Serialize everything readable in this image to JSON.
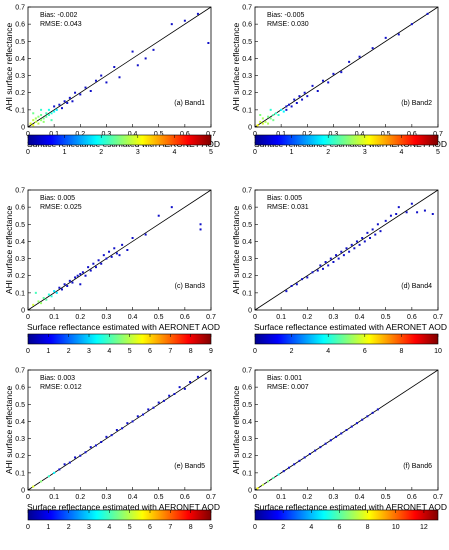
{
  "chart_data": [
    {
      "type": "scatter",
      "id": "a",
      "panel_label": "(a) Band1",
      "xlabel": "Surface reflectance estimated with AERONET AOD",
      "ylabel": "AHI surface reflectance",
      "xlim": [
        0,
        0.7
      ],
      "ylim": [
        0,
        0.7
      ],
      "xticks": [
        "0",
        "0.1",
        "0.2",
        "0.3",
        "0.4",
        "0.5",
        "0.6",
        "0.7"
      ],
      "yticks": [
        "0",
        "0.1",
        "0.2",
        "0.3",
        "0.4",
        "0.5",
        "0.6",
        "0.7"
      ],
      "stats": [
        "Bias: -0.002",
        "RMSE: 0.043"
      ],
      "colorbar": {
        "ticks": [
          "0",
          "1",
          "2",
          "3",
          "4",
          "5"
        ],
        "max": 5
      },
      "reference_line": "1:1",
      "points": [
        [
          0.01,
          0.02
        ],
        [
          0.02,
          0.01
        ],
        [
          0.02,
          0.04
        ],
        [
          0.03,
          0.03
        ],
        [
          0.03,
          0.05
        ],
        [
          0.04,
          0.02
        ],
        [
          0.04,
          0.06
        ],
        [
          0.05,
          0.04
        ],
        [
          0.05,
          0.07
        ],
        [
          0.06,
          0.05
        ],
        [
          0.06,
          0.03
        ],
        [
          0.07,
          0.08
        ],
        [
          0.07,
          0.06
        ],
        [
          0.08,
          0.07
        ],
        [
          0.08,
          0.1
        ],
        [
          0.09,
          0.08
        ],
        [
          0.1,
          0.09
        ],
        [
          0.1,
          0.12
        ],
        [
          0.11,
          0.1
        ],
        [
          0.12,
          0.13
        ],
        [
          0.13,
          0.11
        ],
        [
          0.14,
          0.15
        ],
        [
          0.15,
          0.14
        ],
        [
          0.16,
          0.17
        ],
        [
          0.17,
          0.15
        ],
        [
          0.18,
          0.2
        ],
        [
          0.2,
          0.19
        ],
        [
          0.22,
          0.23
        ],
        [
          0.24,
          0.21
        ],
        [
          0.26,
          0.27
        ],
        [
          0.28,
          0.3
        ],
        [
          0.3,
          0.26
        ],
        [
          0.33,
          0.35
        ],
        [
          0.35,
          0.29
        ],
        [
          0.4,
          0.44
        ],
        [
          0.42,
          0.36
        ],
        [
          0.45,
          0.4
        ],
        [
          0.48,
          0.45
        ],
        [
          0.55,
          0.6
        ],
        [
          0.6,
          0.62
        ],
        [
          0.65,
          0.66
        ],
        [
          0.69,
          0.49
        ],
        [
          0.02,
          0.08
        ],
        [
          0.05,
          0.1
        ],
        [
          0.09,
          0.04
        ]
      ]
    },
    {
      "type": "scatter",
      "id": "b",
      "panel_label": "(b) Band2",
      "xlabel": "Surface reflectance estimated with AERONET AOD",
      "ylabel": "AHI surface reflectance",
      "xlim": [
        0,
        0.7
      ],
      "ylim": [
        0,
        0.7
      ],
      "xticks": [
        "0",
        "0.1",
        "0.2",
        "0.3",
        "0.4",
        "0.5",
        "0.6",
        "0.7"
      ],
      "yticks": [
        "0",
        "0.1",
        "0.2",
        "0.3",
        "0.4",
        "0.5",
        "0.6",
        "0.7"
      ],
      "stats": [
        "Bias: -0.005",
        "RMSE: 0.030"
      ],
      "colorbar": {
        "ticks": [
          "0",
          "1",
          "2",
          "3",
          "4",
          "5"
        ],
        "max": 5
      },
      "reference_line": "1:1",
      "points": [
        [
          0.01,
          0.01
        ],
        [
          0.02,
          0.03
        ],
        [
          0.03,
          0.02
        ],
        [
          0.03,
          0.05
        ],
        [
          0.04,
          0.03
        ],
        [
          0.05,
          0.06
        ],
        [
          0.05,
          0.02
        ],
        [
          0.06,
          0.05
        ],
        [
          0.07,
          0.07
        ],
        [
          0.07,
          0.04
        ],
        [
          0.08,
          0.08
        ],
        [
          0.09,
          0.07
        ],
        [
          0.1,
          0.1
        ],
        [
          0.11,
          0.09
        ],
        [
          0.12,
          0.12
        ],
        [
          0.12,
          0.1
        ],
        [
          0.13,
          0.13
        ],
        [
          0.14,
          0.12
        ],
        [
          0.15,
          0.16
        ],
        [
          0.16,
          0.14
        ],
        [
          0.17,
          0.18
        ],
        [
          0.18,
          0.16
        ],
        [
          0.19,
          0.2
        ],
        [
          0.2,
          0.18
        ],
        [
          0.22,
          0.24
        ],
        [
          0.24,
          0.21
        ],
        [
          0.26,
          0.27
        ],
        [
          0.28,
          0.26
        ],
        [
          0.3,
          0.31
        ],
        [
          0.33,
          0.32
        ],
        [
          0.36,
          0.38
        ],
        [
          0.4,
          0.41
        ],
        [
          0.45,
          0.46
        ],
        [
          0.5,
          0.52
        ],
        [
          0.55,
          0.54
        ],
        [
          0.6,
          0.6
        ],
        [
          0.66,
          0.66
        ],
        [
          0.02,
          0.07
        ],
        [
          0.06,
          0.1
        ]
      ]
    },
    {
      "type": "scatter",
      "id": "c",
      "panel_label": "(c) Band3",
      "xlabel": "Surface reflectance estimated with AERONET AOD",
      "ylabel": "AHI surface reflectance",
      "xlim": [
        0,
        0.7
      ],
      "ylim": [
        0,
        0.7
      ],
      "xticks": [
        "0",
        "0.1",
        "0.2",
        "0.3",
        "0.4",
        "0.5",
        "0.6",
        "0.7"
      ],
      "yticks": [
        "0",
        "0.1",
        "0.2",
        "0.3",
        "0.4",
        "0.5",
        "0.6",
        "0.7"
      ],
      "stats": [
        "Bias: 0.005",
        "RMSE: 0.025"
      ],
      "colorbar": {
        "ticks": [
          "0",
          "1",
          "2",
          "3",
          "4",
          "5",
          "6",
          "7",
          "8",
          "9"
        ],
        "max": 9
      },
      "reference_line": "1:1",
      "points": [
        [
          0.02,
          0.03
        ],
        [
          0.04,
          0.05
        ],
        [
          0.05,
          0.04
        ],
        [
          0.06,
          0.07
        ],
        [
          0.07,
          0.06
        ],
        [
          0.08,
          0.09
        ],
        [
          0.09,
          0.08
        ],
        [
          0.1,
          0.11
        ],
        [
          0.11,
          0.1
        ],
        [
          0.12,
          0.13
        ],
        [
          0.13,
          0.12
        ],
        [
          0.14,
          0.15
        ],
        [
          0.15,
          0.14
        ],
        [
          0.16,
          0.17
        ],
        [
          0.17,
          0.16
        ],
        [
          0.18,
          0.19
        ],
        [
          0.19,
          0.2
        ],
        [
          0.2,
          0.21
        ],
        [
          0.21,
          0.22
        ],
        [
          0.22,
          0.2
        ],
        [
          0.23,
          0.25
        ],
        [
          0.24,
          0.23
        ],
        [
          0.25,
          0.27
        ],
        [
          0.26,
          0.25
        ],
        [
          0.27,
          0.29
        ],
        [
          0.28,
          0.27
        ],
        [
          0.29,
          0.32
        ],
        [
          0.3,
          0.3
        ],
        [
          0.31,
          0.34
        ],
        [
          0.32,
          0.31
        ],
        [
          0.33,
          0.36
        ],
        [
          0.34,
          0.33
        ],
        [
          0.35,
          0.32
        ],
        [
          0.36,
          0.38
        ],
        [
          0.38,
          0.35
        ],
        [
          0.4,
          0.42
        ],
        [
          0.45,
          0.44
        ],
        [
          0.5,
          0.55
        ],
        [
          0.55,
          0.6
        ],
        [
          0.66,
          0.5
        ],
        [
          0.66,
          0.47
        ],
        [
          0.03,
          0.1
        ],
        [
          0.2,
          0.15
        ]
      ]
    },
    {
      "type": "scatter",
      "id": "d",
      "panel_label": "(d) Band4",
      "xlabel": "Surface reflectance estimated with AERONET AOD",
      "ylabel": "AHI surface reflectance",
      "xlim": [
        0,
        0.7
      ],
      "ylim": [
        0,
        0.7
      ],
      "xticks": [
        "0",
        "0.1",
        "0.2",
        "0.3",
        "0.4",
        "0.5",
        "0.6",
        "0.7"
      ],
      "yticks": [
        "0",
        "0.1",
        "0.2",
        "0.3",
        "0.4",
        "0.5",
        "0.6",
        "0.7"
      ],
      "stats": [
        "Bias: 0.005",
        "RMSE: 0.031"
      ],
      "colorbar": {
        "ticks": [
          "0",
          "2",
          "4",
          "6",
          "8",
          "10"
        ],
        "max": 10
      },
      "reference_line": "1:1",
      "points": [
        [
          0.12,
          0.11
        ],
        [
          0.14,
          0.14
        ],
        [
          0.16,
          0.15
        ],
        [
          0.18,
          0.18
        ],
        [
          0.2,
          0.19
        ],
        [
          0.22,
          0.22
        ],
        [
          0.24,
          0.23
        ],
        [
          0.25,
          0.26
        ],
        [
          0.26,
          0.24
        ],
        [
          0.27,
          0.28
        ],
        [
          0.28,
          0.26
        ],
        [
          0.29,
          0.3
        ],
        [
          0.3,
          0.28
        ],
        [
          0.31,
          0.32
        ],
        [
          0.32,
          0.3
        ],
        [
          0.33,
          0.34
        ],
        [
          0.34,
          0.32
        ],
        [
          0.35,
          0.36
        ],
        [
          0.36,
          0.34
        ],
        [
          0.37,
          0.38
        ],
        [
          0.38,
          0.36
        ],
        [
          0.39,
          0.4
        ],
        [
          0.4,
          0.38
        ],
        [
          0.41,
          0.42
        ],
        [
          0.42,
          0.4
        ],
        [
          0.43,
          0.45
        ],
        [
          0.44,
          0.42
        ],
        [
          0.45,
          0.47
        ],
        [
          0.46,
          0.44
        ],
        [
          0.47,
          0.5
        ],
        [
          0.48,
          0.46
        ],
        [
          0.5,
          0.52
        ],
        [
          0.52,
          0.55
        ],
        [
          0.54,
          0.56
        ],
        [
          0.55,
          0.6
        ],
        [
          0.58,
          0.57
        ],
        [
          0.6,
          0.62
        ],
        [
          0.62,
          0.57
        ],
        [
          0.65,
          0.58
        ],
        [
          0.68,
          0.56
        ]
      ]
    },
    {
      "type": "scatter",
      "id": "e",
      "panel_label": "(e) Band5",
      "xlabel": "Surface reflectance estimated with AERONET AOD",
      "ylabel": "AHI surface reflectance",
      "xlim": [
        0,
        0.7
      ],
      "ylim": [
        0,
        0.7
      ],
      "xticks": [
        "0",
        "0.1",
        "0.2",
        "0.3",
        "0.4",
        "0.5",
        "0.6",
        "0.7"
      ],
      "yticks": [
        "0",
        "0.1",
        "0.2",
        "0.3",
        "0.4",
        "0.5",
        "0.6",
        "0.7"
      ],
      "stats": [
        "Bias: 0.003",
        "RMSE: 0.012"
      ],
      "colorbar": {
        "ticks": [
          "0",
          "1",
          "2",
          "3",
          "4",
          "5",
          "6",
          "7",
          "8",
          "9"
        ],
        "max": 9
      },
      "reference_line": "1:1",
      "points": [
        [
          0.02,
          0.02
        ],
        [
          0.05,
          0.05
        ],
        [
          0.08,
          0.08
        ],
        [
          0.1,
          0.1
        ],
        [
          0.12,
          0.12
        ],
        [
          0.14,
          0.15
        ],
        [
          0.16,
          0.16
        ],
        [
          0.18,
          0.19
        ],
        [
          0.2,
          0.2
        ],
        [
          0.22,
          0.22
        ],
        [
          0.24,
          0.25
        ],
        [
          0.26,
          0.26
        ],
        [
          0.28,
          0.28
        ],
        [
          0.3,
          0.31
        ],
        [
          0.32,
          0.32
        ],
        [
          0.34,
          0.35
        ],
        [
          0.36,
          0.36
        ],
        [
          0.38,
          0.39
        ],
        [
          0.4,
          0.4
        ],
        [
          0.42,
          0.43
        ],
        [
          0.44,
          0.44
        ],
        [
          0.46,
          0.47
        ],
        [
          0.48,
          0.48
        ],
        [
          0.5,
          0.51
        ],
        [
          0.52,
          0.52
        ],
        [
          0.54,
          0.55
        ],
        [
          0.56,
          0.56
        ],
        [
          0.58,
          0.6
        ],
        [
          0.6,
          0.59
        ],
        [
          0.62,
          0.63
        ],
        [
          0.65,
          0.66
        ],
        [
          0.68,
          0.65
        ]
      ]
    },
    {
      "type": "scatter",
      "id": "f",
      "panel_label": "(f) Band6",
      "xlabel": "Surface reflectance estimated with AERONET AOD",
      "ylabel": "AHI surface reflectance",
      "xlim": [
        0,
        0.7
      ],
      "ylim": [
        0,
        0.7
      ],
      "xticks": [
        "0",
        "0.1",
        "0.2",
        "0.3",
        "0.4",
        "0.5",
        "0.6",
        "0.7"
      ],
      "yticks": [
        "0",
        "0.1",
        "0.2",
        "0.3",
        "0.4",
        "0.5",
        "0.6",
        "0.7"
      ],
      "stats": [
        "Bias: 0.001",
        "RMSE: 0.007"
      ],
      "colorbar": {
        "ticks": [
          "0",
          "2",
          "4",
          "6",
          "8",
          "10",
          "12"
        ],
        "max": 13
      },
      "reference_line": "1:1",
      "points": [
        [
          0.01,
          0.01
        ],
        [
          0.03,
          0.03
        ],
        [
          0.05,
          0.05
        ],
        [
          0.07,
          0.07
        ],
        [
          0.09,
          0.09
        ],
        [
          0.11,
          0.11
        ],
        [
          0.13,
          0.13
        ],
        [
          0.15,
          0.15
        ],
        [
          0.17,
          0.17
        ],
        [
          0.19,
          0.19
        ],
        [
          0.21,
          0.21
        ],
        [
          0.23,
          0.23
        ],
        [
          0.25,
          0.25
        ],
        [
          0.27,
          0.27
        ],
        [
          0.29,
          0.29
        ],
        [
          0.31,
          0.31
        ],
        [
          0.33,
          0.33
        ],
        [
          0.35,
          0.35
        ],
        [
          0.37,
          0.37
        ],
        [
          0.39,
          0.39
        ],
        [
          0.41,
          0.41
        ],
        [
          0.43,
          0.43
        ],
        [
          0.45,
          0.45
        ],
        [
          0.47,
          0.47
        ]
      ]
    }
  ]
}
